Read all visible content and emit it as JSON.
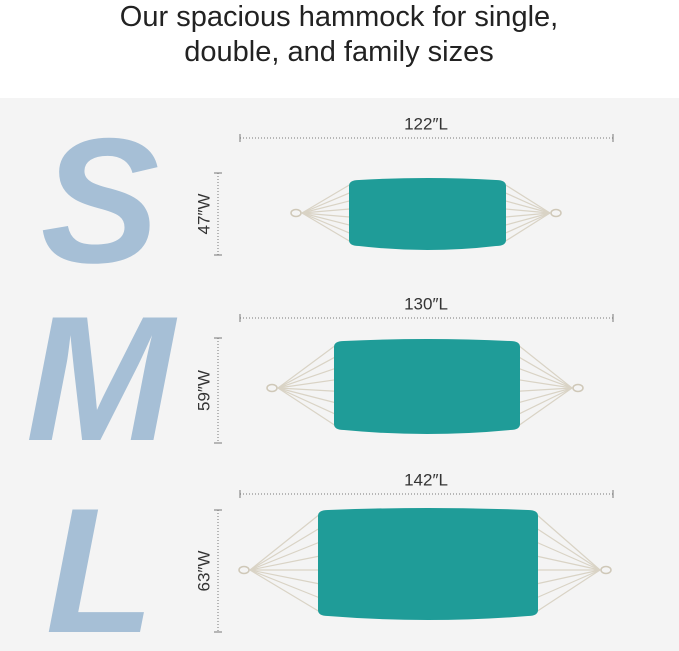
{
  "header": {
    "title_line1": "Our spacious hammock for single,",
    "title_line2": "double, and family sizes"
  },
  "sizes": [
    {
      "letter": "S",
      "length": "122″L",
      "width": "47″W"
    },
    {
      "letter": "M",
      "length": "130″L",
      "width": "59″W"
    },
    {
      "letter": "L",
      "length": "142″L",
      "width": "63″W"
    }
  ]
}
